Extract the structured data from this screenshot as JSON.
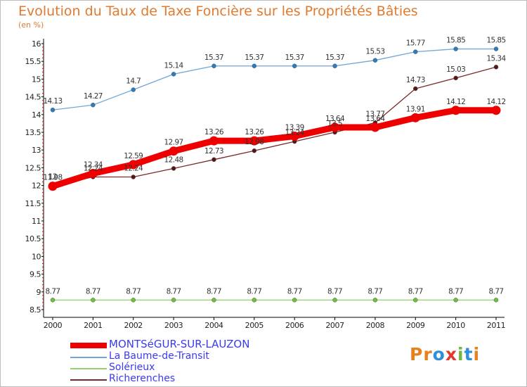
{
  "header": {
    "title": "Evolution du Taux de Taxe Foncière sur les Propriétés Bâties",
    "unit": "(en %)"
  },
  "logo": {
    "text": "Proxiti",
    "letters": [
      {
        "ch": "P",
        "color": "#e8801e"
      },
      {
        "ch": "r",
        "color": "#e8801e"
      },
      {
        "ch": "o",
        "color": "#2f8fd8"
      },
      {
        "ch": "x",
        "color": "#e23a2a"
      },
      {
        "ch": "i",
        "color": "#6fb83c"
      },
      {
        "ch": "t",
        "color": "#2f8fd8"
      },
      {
        "ch": "i",
        "color": "#e8801e"
      }
    ]
  },
  "chart_data": {
    "type": "line",
    "title": "Evolution du Taux de Taxe Foncière sur les Propriétés Bâties",
    "ylabel": "(en %)",
    "xlabel": "",
    "ylim": [
      8.5,
      16
    ],
    "yticks": [
      "8.5",
      "9",
      "9.5",
      "10",
      "10.5",
      "11",
      "11.5",
      "12",
      "12.5",
      "13",
      "13.5",
      "14",
      "14.5",
      "15",
      "15.5",
      "16"
    ],
    "grid": false,
    "legend": "bottom-left",
    "x": [
      "2000",
      "2001",
      "2002",
      "2003",
      "2004",
      "2005",
      "2006",
      "2007",
      "2008",
      "2009",
      "2010",
      "2011"
    ],
    "series": [
      {
        "name": "MONTSéGUR-SUR-LAUZON",
        "color": "#ee0000",
        "marker_color": "#ee0000",
        "style": "thick",
        "values": [
          11.98,
          12.34,
          12.59,
          12.97,
          13.26,
          13.26,
          13.39,
          13.64,
          13.64,
          13.91,
          14.12,
          14.12
        ],
        "labels": [
          "11.98",
          "12.34",
          "12.59",
          "12.97",
          "13.26",
          "13.26",
          "13.39",
          "13.64",
          "13.64",
          "13.91",
          "14.12",
          "14.12"
        ]
      },
      {
        "name": "La Baume-de-Transit",
        "color": "#6fa6d8",
        "marker_color": "#2c7dc0",
        "style": "thin",
        "values": [
          14.13,
          14.27,
          14.7,
          15.14,
          15.37,
          15.37,
          15.37,
          15.37,
          15.53,
          15.77,
          15.85,
          15.85
        ],
        "labels": [
          "14.13",
          "14.27",
          "14.7",
          "15.14",
          "15.37",
          "15.37",
          "15.37",
          "15.37",
          "15.53",
          "15.77",
          "15.85",
          "15.85"
        ]
      },
      {
        "name": "Solérieux",
        "color": "#93d46a",
        "marker_color": "#6cc03a",
        "style": "thin",
        "values": [
          8.77,
          8.77,
          8.77,
          8.77,
          8.77,
          8.77,
          8.77,
          8.77,
          8.77,
          8.77,
          8.77,
          8.77
        ],
        "labels": [
          "8.77",
          "8.77",
          "8.77",
          "8.77",
          "8.77",
          "8.77",
          "8.77",
          "8.77",
          "8.77",
          "8.77",
          "8.77",
          "8.77"
        ]
      },
      {
        "name": "Richerenches",
        "color": "#7b2a2a",
        "marker_color": "#5a1414",
        "style": "thin",
        "values": [
          12.0,
          12.24,
          12.24,
          12.48,
          12.73,
          12.98,
          13.24,
          13.5,
          13.77,
          14.73,
          15.03,
          15.34
        ],
        "labels": [
          "12",
          "12.24",
          "12.24",
          "12.48",
          "12.73",
          "12.98",
          "13.24",
          "13.5",
          "13.77",
          "14.73",
          "15.03",
          "15.34"
        ]
      }
    ]
  }
}
